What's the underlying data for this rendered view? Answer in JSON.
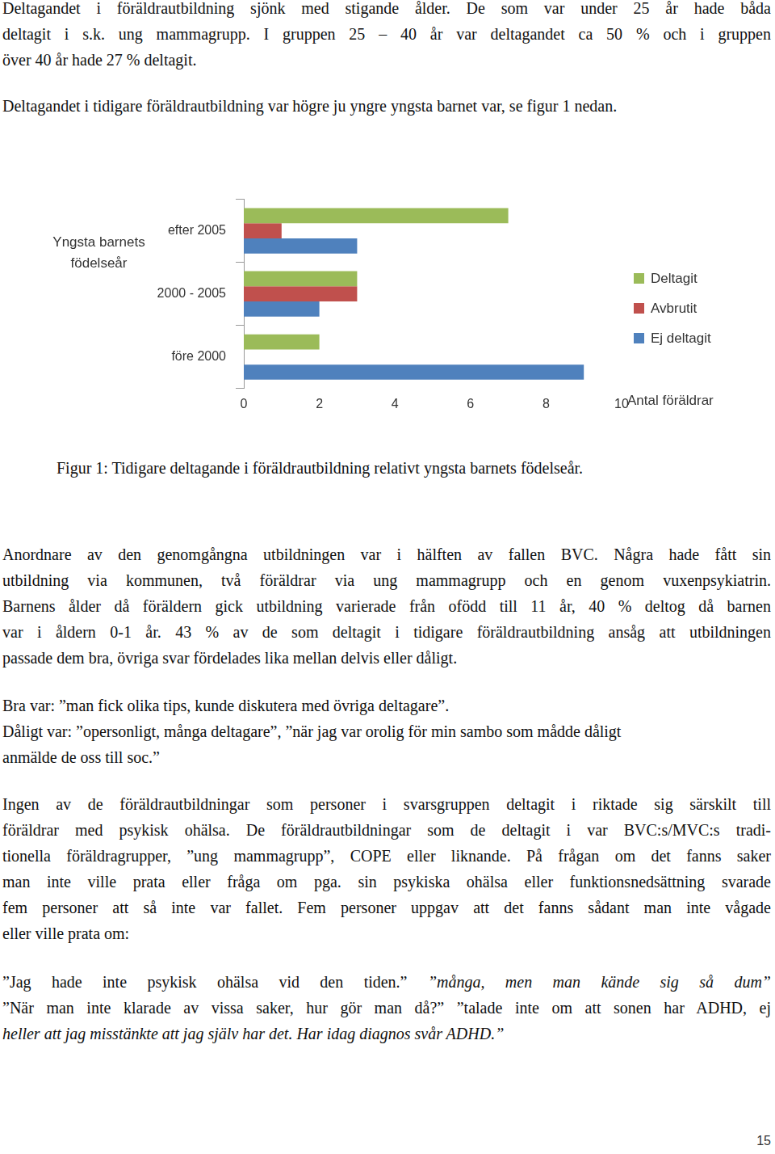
{
  "paragraphs_before": [
    {
      "lines": [
        "Deltagandet i föräldrautbildning sjönk med stigande ålder. De som var under 25 år hade båda",
        "deltagit i s.k. ung mammagrupp. I gruppen 25 – 40 år var deltagandet ca 50 % och i gruppen",
        "över 40 år hade 27 % deltagit."
      ]
    },
    {
      "lines": [
        "Deltagandet i tidigare föräldrautbildning var högre ju yngre yngsta barnet var, se figur 1 nedan."
      ]
    }
  ],
  "chart_data": {
    "type": "bar",
    "orientation": "horizontal",
    "y_label": "Yngsta barnets födelseår",
    "x_label": "Antal föräldrar",
    "categories": [
      "efter 2005",
      "2000 - 2005",
      "före 2000"
    ],
    "series": [
      {
        "name": "Deltagit",
        "color": "#9bbb59",
        "values": [
          7,
          3,
          2
        ]
      },
      {
        "name": "Avbrutit",
        "color": "#c0504d",
        "values": [
          1,
          3,
          0
        ]
      },
      {
        "name": "Ej deltagit",
        "color": "#4f81bd",
        "values": [
          3,
          2,
          9
        ]
      }
    ],
    "xlim": [
      0,
      10
    ],
    "xticks": [
      0,
      2,
      4,
      6,
      8,
      10
    ],
    "grid": false,
    "legend": "right"
  },
  "caption": "Figur 1: Tidigare deltagande i föräldrautbildning relativt yngsta barnets födelseår.",
  "paragraphs_after": [
    {
      "lines": [
        "Anordnare av den genomgångna utbildningen var i hälften av fallen BVC. Några hade fått sin",
        "utbildning via kommunen, två föräldrar via ung mammagrupp och en genom vuxenpsykiatrin.",
        "Barnens ålder då föräldern gick utbildning varierade från ofödd till 11 år, 40 % deltog då barnen",
        "var i åldern 0-1 år. 43 % av de som deltagit i tidigare föräldrautbildning ansåg att utbildningen",
        "passade dem bra, övriga svar fördelades lika mellan delvis eller dåligt."
      ]
    },
    {
      "lines": [
        "Bra var: ”man fick olika tips, kunde diskutera med övriga deltagare”.",
        "Dåligt var: ”opersonligt, många deltagare”, ”när jag var orolig för min sambo som mådde dåligt",
        "anmälde de oss till soc.”"
      ]
    },
    {
      "lines": [
        "Ingen av de föräldrautbildningar som personer i svarsgruppen deltagit i riktade sig särskilt till",
        "föräldrar med psykisk ohälsa. De föräldrautbildningar som de deltagit i var BVC:s/MVC:s tradi-",
        "tionella föräldragrupper, ”ung mammagrupp”, COPE eller liknande. På frågan om det fanns saker",
        "man inte ville prata eller fråga om pga. sin psykiska ohälsa eller funktionsnedsättning svarade",
        "fem personer att så inte var fallet. Fem personer uppgav att det fanns sådant man inte vågade",
        "eller ville prata om:"
      ]
    },
    {
      "lines": [
        [
          {
            "text": "”Jag hade inte psykisk ohälsa vid den tiden.” "
          },
          {
            "text": "”många, men man kände sig så dum”",
            "italic": true
          }
        ],
        [
          {
            "text": "”När man inte klarade av vissa saker, hur gör man då?” ”talade inte om att sonen har ADHD, ej"
          }
        ],
        [
          {
            "text": "heller att jag misstänkte att jag själv har det. Har idag diagnos svår ADHD.”",
            "italic": true
          }
        ]
      ]
    }
  ],
  "page_number": "15"
}
